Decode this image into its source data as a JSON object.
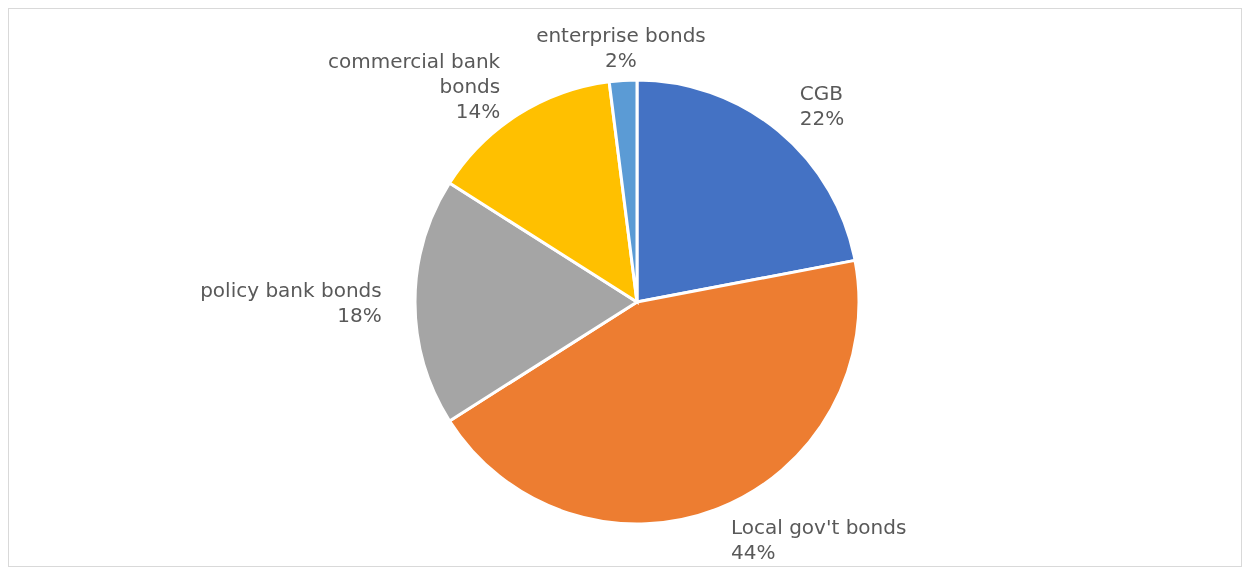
{
  "chart_data": {
    "type": "pie",
    "categories": [
      "CGB",
      "Local gov't bonds",
      "policy bank bonds",
      "commercial bank bonds",
      "enterprise bonds"
    ],
    "values": [
      22,
      44,
      18,
      14,
      2
    ],
    "value_labels": [
      "22%",
      "44%",
      "18%",
      "14%",
      "2%"
    ],
    "colors": [
      "#4472c4",
      "#ed7d31",
      "#a5a5a5",
      "#ffc000",
      "#5b9bd5"
    ],
    "legend": false
  }
}
